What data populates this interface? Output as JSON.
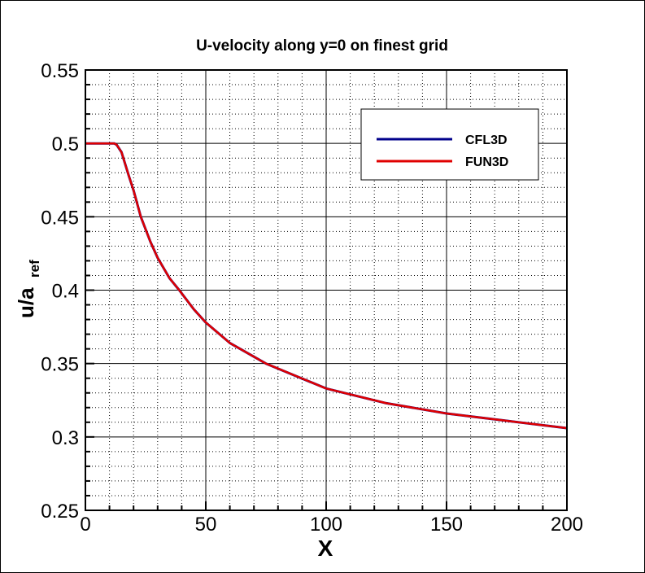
{
  "chart_data": {
    "type": "line",
    "title": "U-velocity along y=0 on finest grid",
    "xlabel": "X",
    "ylabel_main": "u/a",
    "ylabel_sub": "ref",
    "xlim": [
      0,
      200
    ],
    "ylim": [
      0.25,
      0.55
    ],
    "xticks": [
      0,
      50,
      100,
      150,
      200
    ],
    "xtick_labels": [
      "0",
      "50",
      "100",
      "150",
      "200"
    ],
    "yticks": [
      0.25,
      0.3,
      0.35,
      0.4,
      0.45,
      0.5,
      0.55
    ],
    "ytick_labels": [
      "0.25",
      "0.3",
      "0.35",
      "0.4",
      "0.45",
      "0.5",
      "0.55"
    ],
    "grid": true,
    "legend_position": "top-right",
    "series": [
      {
        "name": "CFL3D",
        "color": "#00008b",
        "x": [
          0,
          12,
          13,
          15,
          18,
          20,
          23,
          27,
          30,
          35,
          39,
          45,
          50,
          60,
          75,
          100,
          125,
          150,
          175,
          200
        ],
        "y": [
          0.5,
          0.5,
          0.499,
          0.494,
          0.478,
          0.468,
          0.45,
          0.433,
          0.422,
          0.408,
          0.4,
          0.387,
          0.378,
          0.364,
          0.35,
          0.333,
          0.323,
          0.316,
          0.311,
          0.306
        ]
      },
      {
        "name": "FUN3D",
        "color": "#e00000",
        "x": [
          0,
          12,
          13,
          15,
          18,
          20,
          23,
          27,
          30,
          35,
          39,
          45,
          50,
          60,
          75,
          100,
          125,
          150,
          175,
          200
        ],
        "y": [
          0.5,
          0.5,
          0.499,
          0.494,
          0.478,
          0.468,
          0.45,
          0.433,
          0.422,
          0.408,
          0.4,
          0.387,
          0.378,
          0.364,
          0.35,
          0.333,
          0.323,
          0.316,
          0.311,
          0.306
        ]
      }
    ]
  }
}
